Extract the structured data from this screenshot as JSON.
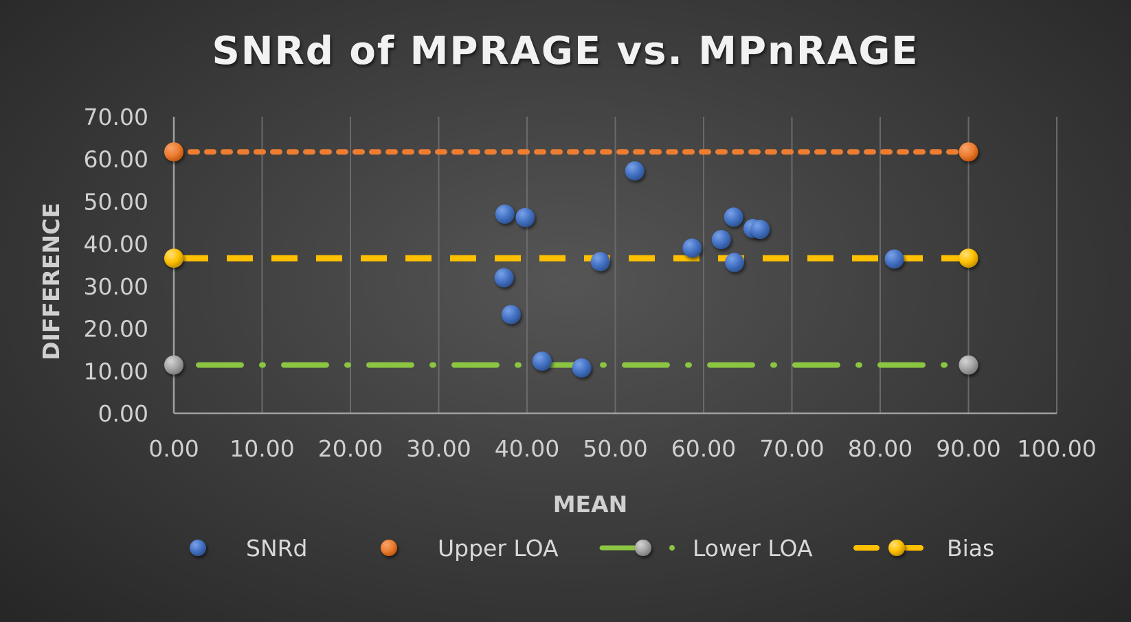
{
  "chart_data": {
    "type": "scatter",
    "title": "SNRd of MPRAGE vs. MPnRAGE",
    "xlabel": "MEAN",
    "ylabel": "DIFFERENCE",
    "xlim": [
      0,
      100
    ],
    "ylim": [
      0,
      70
    ],
    "x_ticks": [
      "0.00",
      "10.00",
      "20.00",
      "30.00",
      "40.00",
      "50.00",
      "60.00",
      "70.00",
      "80.00",
      "90.00",
      "100.00"
    ],
    "y_ticks": [
      "0.00",
      "10.00",
      "20.00",
      "30.00",
      "40.00",
      "50.00",
      "60.00",
      "70.00"
    ],
    "grid": "vertical",
    "legend_position": "bottom",
    "series": [
      {
        "name": "SNRd",
        "kind": "scatter",
        "color": "#4472c4",
        "points": [
          {
            "x": 37.5,
            "y": 47.0
          },
          {
            "x": 39.8,
            "y": 46.2
          },
          {
            "x": 37.4,
            "y": 32.0
          },
          {
            "x": 38.2,
            "y": 23.3
          },
          {
            "x": 41.7,
            "y": 12.3
          },
          {
            "x": 46.2,
            "y": 10.7
          },
          {
            "x": 48.3,
            "y": 35.8
          },
          {
            "x": 52.2,
            "y": 57.2
          },
          {
            "x": 58.7,
            "y": 39.0
          },
          {
            "x": 62.0,
            "y": 41.0
          },
          {
            "x": 63.4,
            "y": 46.3
          },
          {
            "x": 63.5,
            "y": 35.6
          },
          {
            "x": 65.6,
            "y": 43.6
          },
          {
            "x": 66.4,
            "y": 43.4
          },
          {
            "x": 81.6,
            "y": 36.4
          }
        ]
      },
      {
        "name": "Upper LOA",
        "kind": "line",
        "color": "#ed7d31",
        "dash": "round-dot",
        "points": [
          {
            "x": 0,
            "y": 61.7
          },
          {
            "x": 90,
            "y": 61.7
          }
        ]
      },
      {
        "name": "Lower LOA",
        "kind": "line",
        "color": "#8cc542",
        "marker_color": "#a5a5a5",
        "dash": "long-dash-dot",
        "points": [
          {
            "x": 0,
            "y": 11.4
          },
          {
            "x": 90,
            "y": 11.4
          }
        ]
      },
      {
        "name": "Bias",
        "kind": "line",
        "color": "#ffc000",
        "dash": "dash",
        "points": [
          {
            "x": 0,
            "y": 36.6
          },
          {
            "x": 90,
            "y": 36.6
          }
        ]
      }
    ]
  }
}
